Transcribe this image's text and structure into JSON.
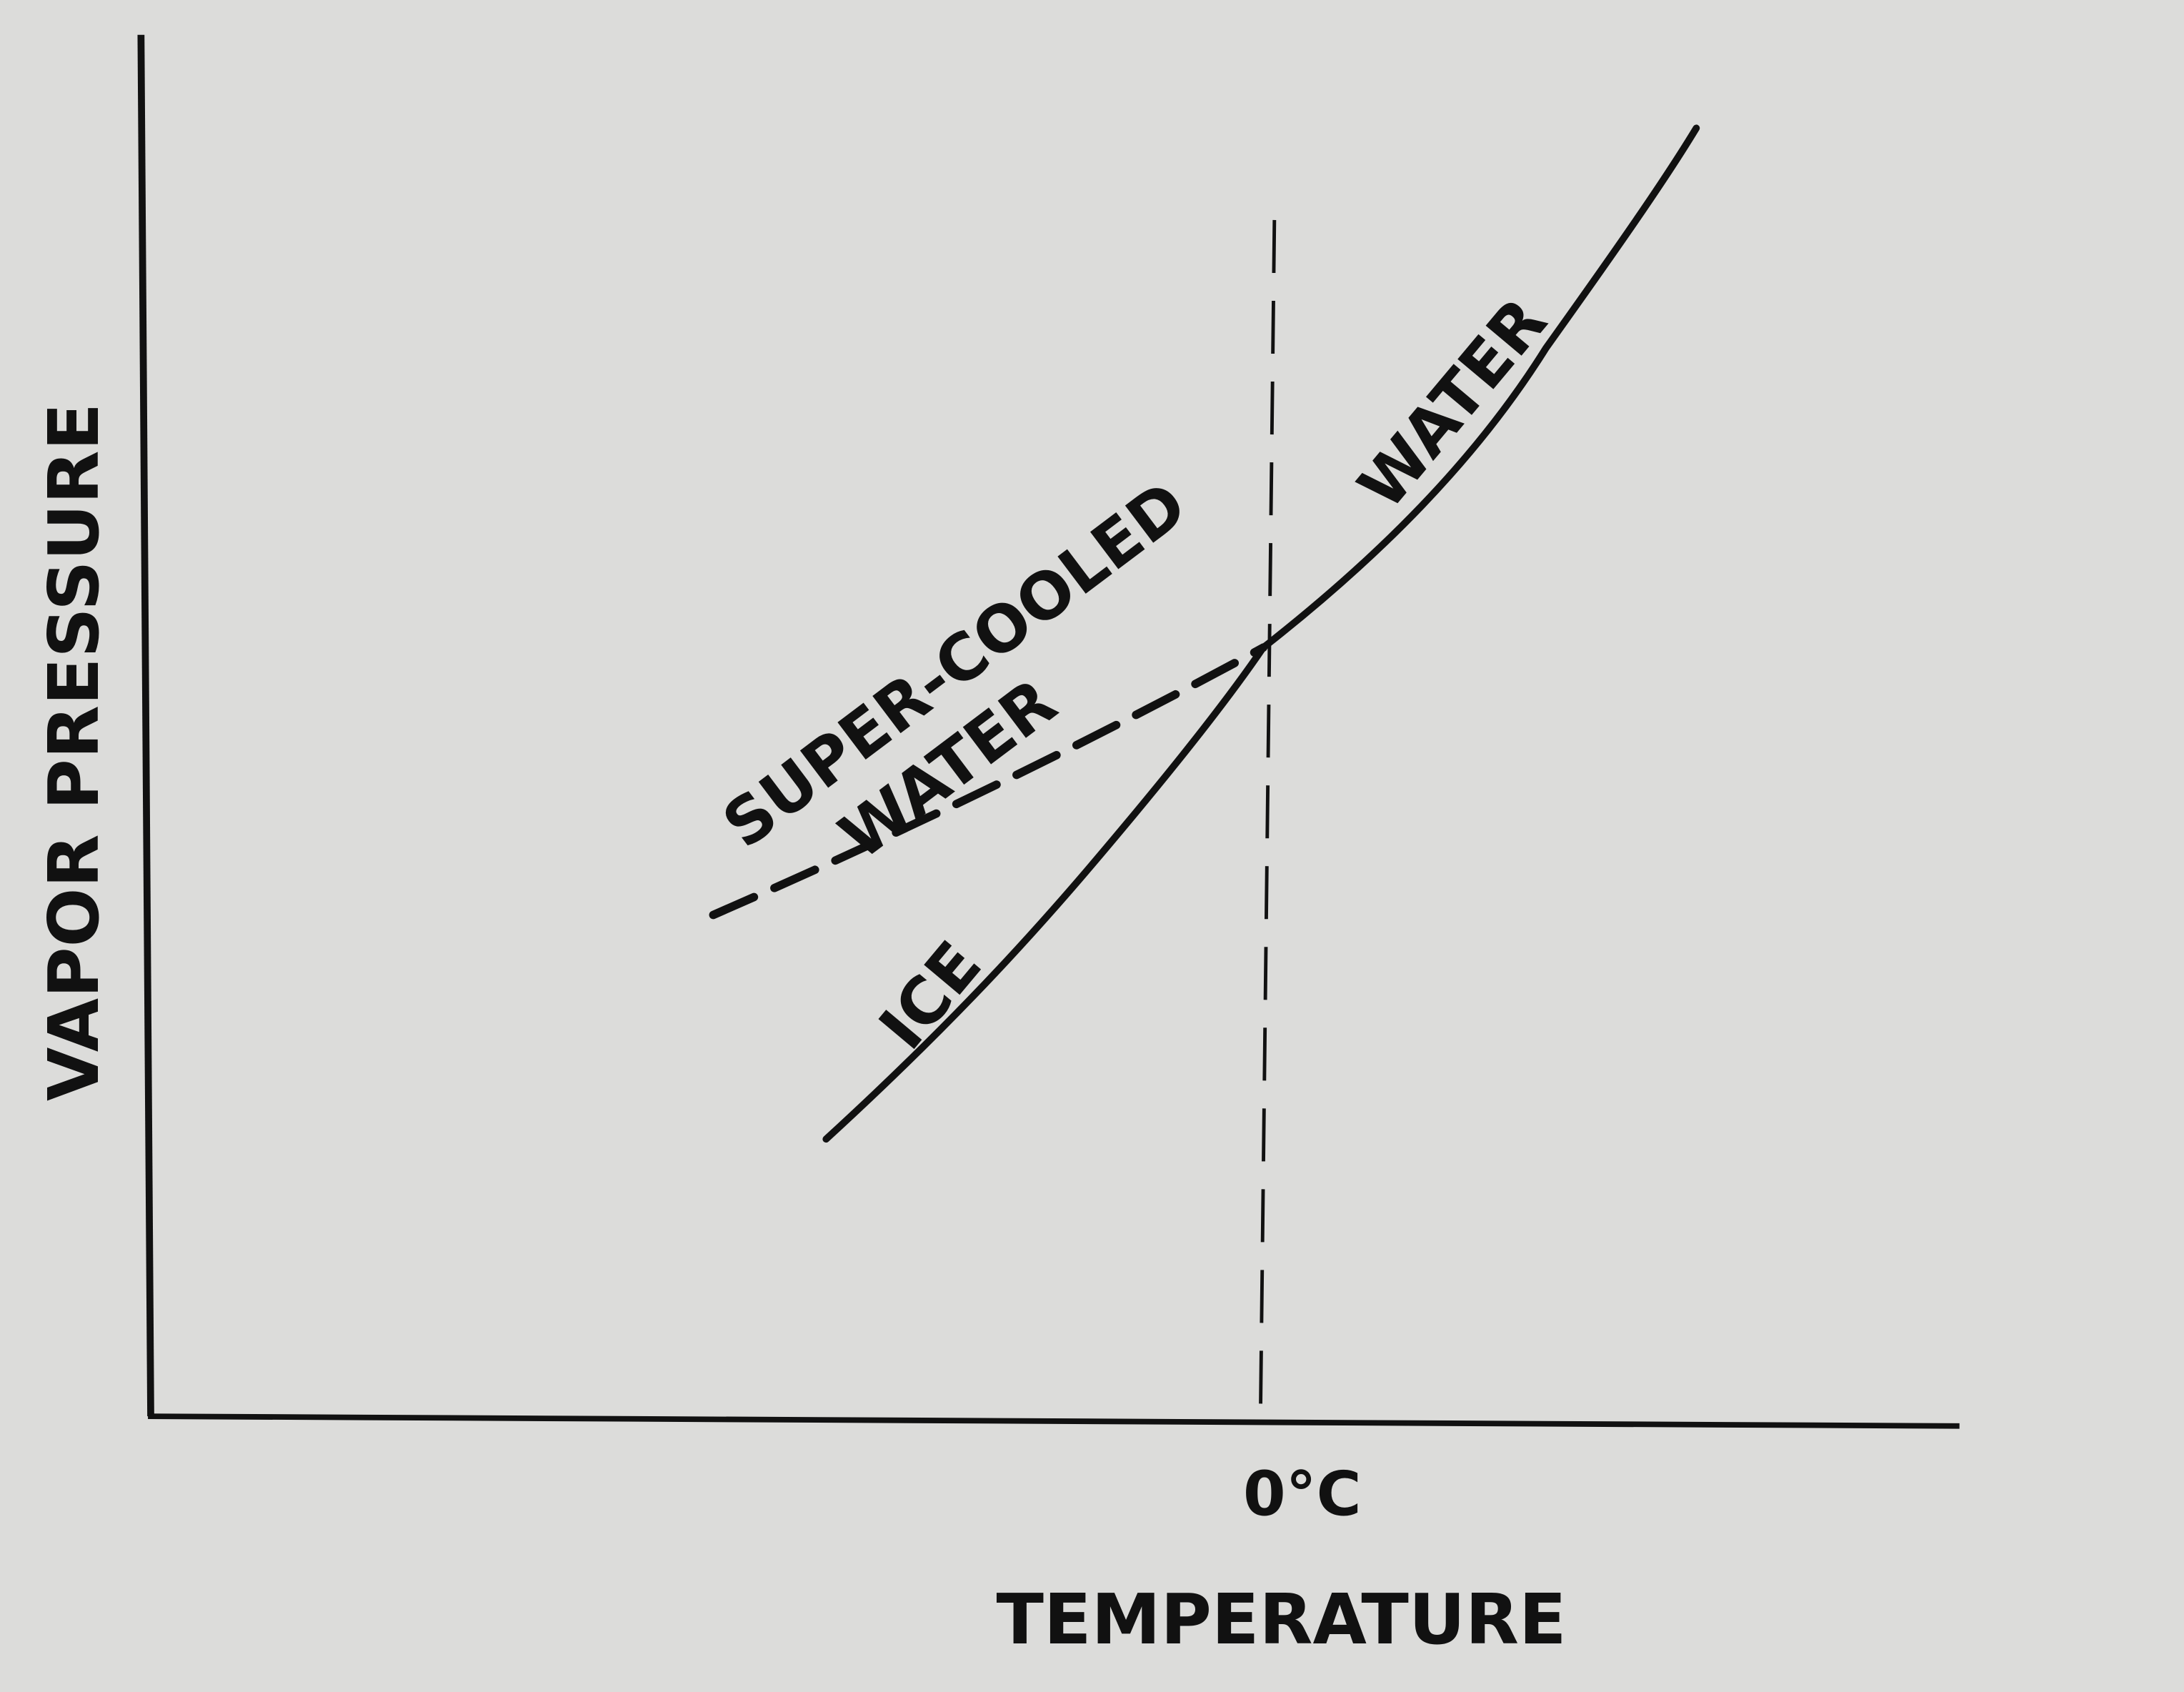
{
  "axes": {
    "y_label": "VAPOR PRESSURE",
    "x_label": "TEMPERATURE",
    "x_tick": "0°C"
  },
  "curves": {
    "ice": "ICE",
    "water": "WATER",
    "supercooled_line1": "SUPER-COOLED",
    "supercooled_line2": "WATER"
  },
  "colors": {
    "paper": "#dcdcda",
    "ink": "#111111"
  }
}
